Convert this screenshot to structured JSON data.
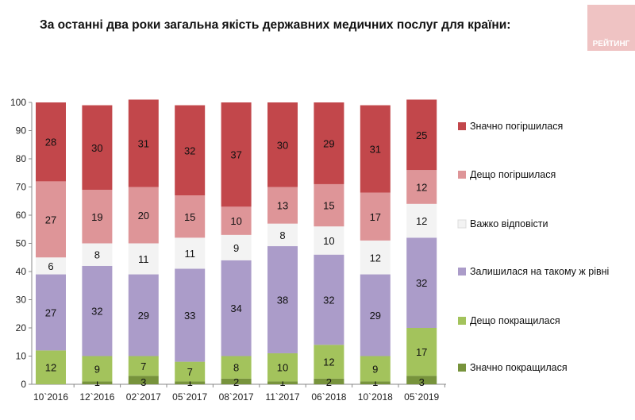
{
  "chart_data": {
    "type": "bar",
    "stacked": true,
    "title": "За останні два роки загальна якість державних медичних послуг для країни:",
    "xlabel": "",
    "ylabel": "",
    "ylim": [
      0,
      100
    ],
    "yticks": [
      0,
      10,
      20,
      30,
      40,
      50,
      60,
      70,
      80,
      90,
      100
    ],
    "grid": false,
    "legend_position": "right",
    "categories": [
      "10`2016",
      "12`2016",
      "02`2017",
      "05`2017",
      "08`2017",
      "11`2017",
      "06`2018",
      "10`2018",
      "05`2019"
    ],
    "series": [
      {
        "name": "Значно покращилася",
        "color": "#77933c",
        "values": [
          0,
          1,
          3,
          1,
          2,
          1,
          2,
          1,
          3
        ]
      },
      {
        "name": "Дещо покращилася",
        "color": "#a3c35c",
        "values": [
          12,
          9,
          7,
          7,
          8,
          10,
          12,
          9,
          17
        ]
      },
      {
        "name": "Залишилася на такому ж рівні",
        "color": "#ab9cc9",
        "values": [
          27,
          32,
          29,
          33,
          34,
          38,
          32,
          29,
          32
        ]
      },
      {
        "name": "Важко відповісти",
        "color": "#f3f3f3",
        "values": [
          6,
          8,
          11,
          11,
          9,
          8,
          10,
          12,
          12
        ]
      },
      {
        "name": "Дещо погіршилася",
        "color": "#de9598",
        "values": [
          27,
          19,
          20,
          15,
          10,
          13,
          15,
          17,
          12
        ]
      },
      {
        "name": "Значно погіршилася",
        "color": "#c2474b",
        "values": [
          28,
          30,
          31,
          32,
          37,
          30,
          29,
          31,
          25
        ]
      }
    ]
  },
  "watermark": {
    "text": "РЕЙТИНГ",
    "color": "#e8a9aa"
  }
}
